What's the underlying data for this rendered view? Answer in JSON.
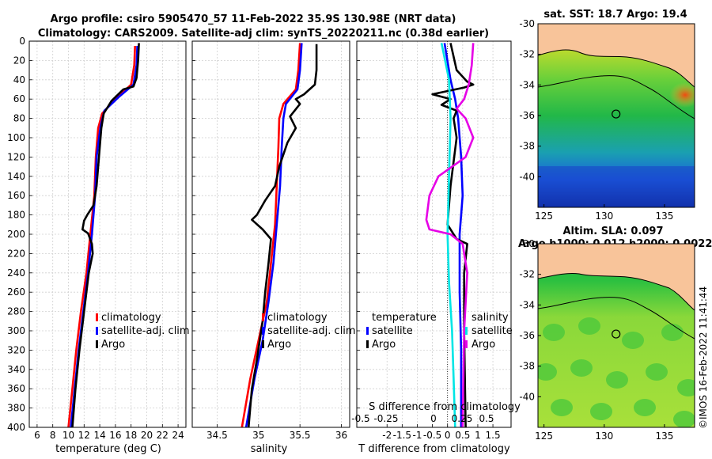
{
  "title_line1": "Argo profile: csiro 5905470_57 11-Feb-2022 35.9S 130.98E (NRT data)",
  "title_line2": "Climatology: CARS2009. Satellite-adj clim: synTS_20220211.nc (0.38d earlier)",
  "watermark": "©IMOS 16-Feb-2022 11:41:44",
  "colors": {
    "climatology": "#ff0000",
    "satellite": "#0000ff",
    "argo": "#000000",
    "sal_satellite": "#00e5e5",
    "sal_argo": "#e600e6",
    "land": "#f8c49a"
  },
  "chart_data": [
    {
      "type": "line",
      "name": "temperature-profile",
      "xlabel": "temperature (deg C)",
      "xlim": [
        5,
        25
      ],
      "xticks": [
        6,
        8,
        10,
        12,
        14,
        16,
        18,
        20,
        22,
        24
      ],
      "ylim": [
        0,
        400
      ],
      "yticks": [
        0,
        20,
        40,
        60,
        80,
        100,
        120,
        140,
        160,
        180,
        200,
        220,
        240,
        260,
        280,
        300,
        320,
        340,
        360,
        380,
        400
      ],
      "legend": [
        "climatology",
        "satellite-adj. clim",
        "Argo"
      ],
      "series": [
        {
          "name": "climatology",
          "color": "#ff0000",
          "points": [
            [
              18.5,
              5
            ],
            [
              18.4,
              25
            ],
            [
              18.0,
              45
            ],
            [
              16.0,
              60
            ],
            [
              14.3,
              75
            ],
            [
              13.8,
              90
            ],
            [
              13.5,
              120
            ],
            [
              13.3,
              160
            ],
            [
              12.8,
              200
            ],
            [
              12.3,
              240
            ],
            [
              11.6,
              280
            ],
            [
              11.0,
              320
            ],
            [
              10.5,
              360
            ],
            [
              10.0,
              400
            ]
          ]
        },
        {
          "name": "satellite-adj. clim",
          "color": "#0000ff",
          "points": [
            [
              18.8,
              5
            ],
            [
              18.7,
              25
            ],
            [
              18.3,
              45
            ],
            [
              16.4,
              58
            ],
            [
              14.6,
              72
            ],
            [
              14.1,
              88
            ],
            [
              13.6,
              120
            ],
            [
              13.4,
              160
            ],
            [
              13.0,
              200
            ],
            [
              12.5,
              240
            ],
            [
              11.9,
              280
            ],
            [
              11.3,
              320
            ],
            [
              10.8,
              360
            ],
            [
              10.3,
              400
            ]
          ]
        },
        {
          "name": "Argo",
          "color": "#000000",
          "points": [
            [
              19.0,
              2
            ],
            [
              18.9,
              20
            ],
            [
              18.7,
              38
            ],
            [
              18.3,
              47
            ],
            [
              17.0,
              50
            ],
            [
              15.5,
              62
            ],
            [
              14.5,
              75
            ],
            [
              14.2,
              90
            ],
            [
              14.0,
              110
            ],
            [
              13.8,
              130
            ],
            [
              13.6,
              150
            ],
            [
              13.2,
              170
            ],
            [
              12.4,
              180
            ],
            [
              12.0,
              186
            ],
            [
              11.8,
              195
            ],
            [
              12.5,
              199
            ],
            [
              13.0,
              210
            ],
            [
              13.1,
              220
            ],
            [
              12.6,
              240
            ],
            [
              12.0,
              280
            ],
            [
              11.4,
              320
            ],
            [
              10.9,
              360
            ],
            [
              10.5,
              400
            ]
          ]
        }
      ]
    },
    {
      "type": "line",
      "name": "salinity-profile",
      "xlabel": "salinity",
      "xlim": [
        34.2,
        36.1
      ],
      "xticks": [
        34.5,
        35,
        35.5,
        36
      ],
      "ylim": [
        0,
        400
      ],
      "legend": [
        "climatology",
        "satellite-adj. clim",
        "Argo"
      ],
      "series": [
        {
          "name": "climatology",
          "color": "#ff0000",
          "points": [
            [
              35.5,
              2
            ],
            [
              35.48,
              30
            ],
            [
              35.45,
              50
            ],
            [
              35.3,
              65
            ],
            [
              35.25,
              80
            ],
            [
              35.24,
              110
            ],
            [
              35.22,
              150
            ],
            [
              35.2,
              190
            ],
            [
              35.15,
              230
            ],
            [
              35.1,
              270
            ],
            [
              35.0,
              310
            ],
            [
              34.9,
              350
            ],
            [
              34.8,
              400
            ]
          ]
        },
        {
          "name": "satellite-adj. clim",
          "color": "#0000ff",
          "points": [
            [
              35.52,
              2
            ],
            [
              35.5,
              30
            ],
            [
              35.47,
              50
            ],
            [
              35.33,
              65
            ],
            [
              35.3,
              80
            ],
            [
              35.28,
              110
            ],
            [
              35.26,
              150
            ],
            [
              35.22,
              190
            ],
            [
              35.18,
              230
            ],
            [
              35.12,
              270
            ],
            [
              35.05,
              310
            ],
            [
              34.95,
              350
            ],
            [
              34.85,
              400
            ]
          ]
        },
        {
          "name": "Argo",
          "color": "#000000",
          "points": [
            [
              35.7,
              3
            ],
            [
              35.7,
              30
            ],
            [
              35.68,
              45
            ],
            [
              35.55,
              55
            ],
            [
              35.45,
              60
            ],
            [
              35.5,
              65
            ],
            [
              35.38,
              78
            ],
            [
              35.45,
              90
            ],
            [
              35.35,
              105
            ],
            [
              35.25,
              130
            ],
            [
              35.2,
              150
            ],
            [
              35.08,
              165
            ],
            [
              34.98,
              180
            ],
            [
              34.92,
              185
            ],
            [
              35.05,
              195
            ],
            [
              35.15,
              205
            ],
            [
              35.12,
              230
            ],
            [
              35.08,
              260
            ],
            [
              35.05,
              290
            ],
            [
              34.98,
              330
            ],
            [
              34.92,
              360
            ],
            [
              34.88,
              400
            ]
          ]
        }
      ]
    },
    {
      "type": "line",
      "name": "difference-profile",
      "xlabel": "T difference from climatology",
      "xlim": [
        -3,
        2.1
      ],
      "xticks": [
        -2,
        -1.5,
        -1,
        -0.5,
        0,
        0.5,
        1,
        1.5
      ],
      "xtick_labels": [
        "-2",
        "-1.5",
        "-1",
        "-0.5",
        "0",
        "0.5",
        "1",
        "1.5"
      ],
      "secondary_xlabel": "S difference from climatology",
      "secondary_ticks": [
        "-0.5",
        "-0.25",
        "0",
        "0.25",
        "0.5"
      ],
      "ylim": [
        0,
        400
      ],
      "legend_left": {
        "title": "temperature",
        "items": [
          "satellite",
          "Argo"
        ]
      },
      "legend_right": {
        "title": "salinity",
        "items": [
          "satellite",
          "Argo"
        ]
      },
      "series": [
        {
          "name": "temperature satellite",
          "color": "#0000ff",
          "points": [
            [
              -0.1,
              2
            ],
            [
              0.1,
              40
            ],
            [
              0.25,
              60
            ],
            [
              0.35,
              80
            ],
            [
              0.45,
              120
            ],
            [
              0.5,
              160
            ],
            [
              0.4,
              200
            ],
            [
              0.4,
              260
            ],
            [
              0.45,
              320
            ],
            [
              0.45,
              400
            ]
          ]
        },
        {
          "name": "temperature Argo",
          "color": "#000000",
          "points": [
            [
              0.1,
              2
            ],
            [
              0.3,
              30
            ],
            [
              0.65,
              42
            ],
            [
              0.85,
              45
            ],
            [
              0.55,
              48
            ],
            [
              -0.5,
              55
            ],
            [
              0.1,
              60
            ],
            [
              -0.2,
              66
            ],
            [
              0.3,
              72
            ],
            [
              0.2,
              80
            ],
            [
              0.3,
              100
            ],
            [
              0.1,
              150
            ],
            [
              0,
              190
            ],
            [
              0.3,
              205
            ],
            [
              0.65,
              210
            ],
            [
              0.55,
              240
            ],
            [
              0.55,
              300
            ],
            [
              0.6,
              400
            ]
          ]
        },
        {
          "name": "salinity satellite",
          "color": "#00e5e5",
          "points": [
            [
              -0.2,
              2
            ],
            [
              0.05,
              40
            ],
            [
              0.1,
              80
            ],
            [
              0.05,
              140
            ],
            [
              0.0,
              200
            ],
            [
              0.05,
              250
            ],
            [
              0.15,
              300
            ],
            [
              0.2,
              350
            ],
            [
              0.25,
              400
            ]
          ]
        },
        {
          "name": "salinity Argo",
          "color": "#e600e6",
          "points": [
            [
              0.85,
              2
            ],
            [
              0.8,
              25
            ],
            [
              0.7,
              45
            ],
            [
              0.55,
              60
            ],
            [
              0.3,
              70
            ],
            [
              0.6,
              80
            ],
            [
              0.85,
              100
            ],
            [
              0.6,
              120
            ],
            [
              -0.3,
              140
            ],
            [
              -0.6,
              160
            ],
            [
              -0.7,
              185
            ],
            [
              -0.6,
              195
            ],
            [
              0.1,
              200
            ],
            [
              0.5,
              210
            ],
            [
              0.65,
              240
            ],
            [
              0.55,
              300
            ],
            [
              0.5,
              400
            ]
          ]
        }
      ]
    },
    {
      "type": "heatmap",
      "name": "sst-map",
      "title": "sat. SST: 18.7 Argo: 19.4",
      "xlim": [
        124.5,
        137.5
      ],
      "ylim": [
        -42,
        -30
      ],
      "xticks": [
        125,
        130,
        135
      ],
      "yticks": [
        -30,
        -32,
        -34,
        -36,
        -38,
        -40
      ],
      "float": [
        130.98,
        -35.9
      ]
    },
    {
      "type": "heatmap",
      "name": "sla-map",
      "title1": "Altim. SLA: 0.097",
      "title2": "Argo h1000: 0.012 h2000: 0.0022",
      "xlim": [
        124.5,
        137.5
      ],
      "ylim": [
        -42,
        -30
      ],
      "xticks": [
        125,
        130,
        135
      ],
      "yticks": [
        -30,
        -32,
        -34,
        -36,
        -38,
        -40
      ],
      "float": [
        130.98,
        -35.9
      ]
    }
  ]
}
